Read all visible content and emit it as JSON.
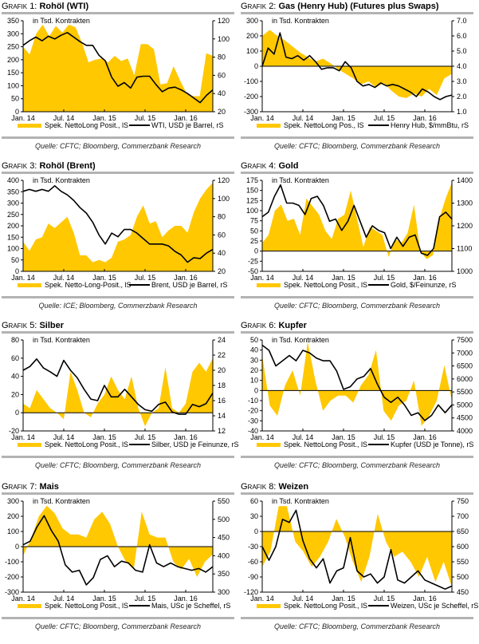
{
  "colors": {
    "fill": "#ffc800",
    "line": "#000000",
    "rule": "#b3b3b3"
  },
  "common": {
    "grafik_label": "Grafik",
    "unit_note": "in Tsd. Kontrakten",
    "x_tick_labels": [
      "Jan. 14",
      "Jul. 14",
      "Jan. 15",
      "Jul. 15",
      "Jan. 16"
    ]
  },
  "chart_data": [
    {
      "id": 1,
      "number": "1:",
      "title": "Rohöl (WTI)",
      "type": "area+line",
      "source": "Quelle: CFTC; Bloomberg, Commerzbank Research",
      "note": "in Tsd. Kontrakten",
      "left_axis": {
        "ticks": [
          "0",
          "50",
          "100",
          "150",
          "200",
          "250",
          "300",
          "350"
        ],
        "range": [
          0,
          350
        ]
      },
      "right_axis": {
        "ticks": [
          "20",
          "40",
          "60",
          "80",
          "100",
          "120"
        ],
        "range": [
          20,
          120
        ]
      },
      "x_ticks": [
        "Jan. 14",
        "Jul. 14",
        "Jan. 15",
        "Jul. 15",
        "Jan. 16"
      ],
      "area_series": {
        "name": "Spek. NettoLong Posit., lS",
        "values": [
          250,
          220,
          300,
          335,
          290,
          330,
          305,
          335,
          325,
          265,
          190,
          200,
          205,
          190,
          215,
          195,
          205,
          140,
          260,
          260,
          240,
          105,
          110,
          175,
          120,
          70,
          60,
          60,
          225,
          215
        ]
      },
      "line_series": {
        "name": "WTI, USD je Barrel, rS",
        "values": [
          93,
          98,
          102,
          98,
          103,
          100,
          104,
          107,
          102,
          97,
          93,
          93,
          82,
          76,
          58,
          48,
          52,
          46,
          58,
          59,
          59,
          50,
          42,
          46,
          47,
          44,
          40,
          35,
          30,
          38,
          44
        ]
      }
    },
    {
      "id": 2,
      "number": "2:",
      "title": "Gas (Henry Hub) (Futures plus Swaps)",
      "type": "area+line",
      "source": "Quelle: CFTC; Bloomberg, Commerzbank Research",
      "note": "in Tsd. Kontrakten",
      "left_axis": {
        "ticks": [
          "-300",
          "-200",
          "-100",
          "0",
          "100",
          "200",
          "300"
        ],
        "range": [
          -300,
          300
        ]
      },
      "right_axis": {
        "ticks": [
          "1.0",
          "2.0",
          "3.0",
          "4.0",
          "5.0",
          "6.0",
          "7.0"
        ],
        "range": [
          1,
          7
        ]
      },
      "x_ticks": [
        "Jan. 14",
        "Jul. 14",
        "Jan. 15",
        "Jul. 15",
        "Jan. 16"
      ],
      "area_series": {
        "name": "Spek. NettoLong Pos., lS",
        "values": [
          200,
          240,
          200,
          170,
          130,
          90,
          60,
          30,
          50,
          20,
          -20,
          -50,
          -80,
          -120,
          -100,
          -140,
          -110,
          -160,
          -200,
          -210,
          -180,
          -200,
          -150,
          -190,
          -80,
          -50
        ]
      },
      "line_series": {
        "name": "Henry Hub, $/mmBtu, rS",
        "values": [
          4.0,
          5.2,
          4.8,
          6.2,
          4.6,
          4.5,
          4.7,
          4.4,
          4.7,
          4.3,
          3.8,
          3.9,
          3.9,
          3.7,
          4.3,
          3.9,
          3.0,
          2.7,
          2.8,
          2.6,
          2.9,
          2.7,
          2.8,
          2.7,
          2.5,
          2.3,
          2.0,
          2.5,
          2.3,
          2.0,
          1.8,
          2.0,
          2.1
        ]
      }
    },
    {
      "id": 3,
      "number": "3:",
      "title": "Rohöl (Brent)",
      "type": "area+line",
      "source": "Quelle: ICE; Bloomberg, Commerzbank Research",
      "note": "in Tsd. Kontrakten",
      "left_axis": {
        "ticks": [
          "0",
          "50",
          "100",
          "150",
          "200",
          "250",
          "300",
          "350",
          "400"
        ],
        "range": [
          0,
          400
        ]
      },
      "right_axis": {
        "ticks": [
          "20",
          "40",
          "60",
          "80",
          "100",
          "120"
        ],
        "range": [
          20,
          120
        ]
      },
      "x_ticks": [
        "Jan. 14",
        "Jul. 14",
        "Jan. 15",
        "Jul. 15",
        "Jan. 16"
      ],
      "area_series": {
        "name": "Spek. Netto-Long-Posit., lS",
        "values": [
          130,
          90,
          140,
          150,
          210,
          190,
          215,
          240,
          170,
          70,
          70,
          40,
          50,
          40,
          60,
          130,
          140,
          160,
          240,
          290,
          210,
          220,
          150,
          180,
          200,
          200,
          170,
          260,
          320,
          360,
          390
        ]
      },
      "line_series": {
        "name": "Brent, USD je Barrel, rS",
        "values": [
          108,
          110,
          108,
          110,
          108,
          114,
          108,
          104,
          98,
          90,
          84,
          74,
          60,
          50,
          62,
          58,
          66,
          66,
          62,
          56,
          50,
          50,
          50,
          48,
          42,
          38,
          30,
          35,
          34,
          40,
          44
        ]
      }
    },
    {
      "id": 4,
      "number": "4:",
      "title": "Gold",
      "type": "area+line",
      "source": "Quelle: CFTC; Bloomberg, Commerzbank Research",
      "note": "in Tsd. Kontrakten",
      "left_axis": {
        "ticks": [
          "-50",
          "-25",
          "0",
          "25",
          "50",
          "75",
          "100",
          "125",
          "150",
          "175"
        ],
        "range": [
          -50,
          175
        ]
      },
      "right_axis": {
        "ticks": [
          "1000",
          "1100",
          "1200",
          "1300",
          "1400"
        ],
        "range": [
          1000,
          1400
        ]
      },
      "x_ticks": [
        "Jan. 14",
        "Jul. 14",
        "Jan. 15",
        "Jul. 15",
        "Jan. 16"
      ],
      "area_series": {
        "name": "Spek. NettoLong Posit., lS",
        "values": [
          20,
          40,
          100,
          115,
          75,
          80,
          40,
          130,
          110,
          90,
          50,
          30,
          80,
          90,
          150,
          80,
          10,
          60,
          50,
          40,
          -15,
          30,
          20,
          45,
          115,
          0,
          -20,
          -10,
          80,
          130,
          170
        ]
      },
      "line_series": {
        "name": "Gold, $/Feinunze, rS",
        "values": [
          1240,
          1260,
          1330,
          1380,
          1300,
          1300,
          1290,
          1250,
          1320,
          1330,
          1290,
          1220,
          1230,
          1180,
          1220,
          1290,
          1220,
          1150,
          1200,
          1180,
          1170,
          1100,
          1150,
          1110,
          1150,
          1160,
          1080,
          1070,
          1100,
          1240,
          1260,
          1230
        ]
      }
    },
    {
      "id": 5,
      "number": "5:",
      "title": "Silber",
      "type": "area+line",
      "source": "Quelle: CFTC; Bloomberg, Commerzbank Research",
      "note": "in Tsd. Kontrakten",
      "left_axis": {
        "ticks": [
          "-20",
          "0",
          "20",
          "40",
          "60",
          "80"
        ],
        "range": [
          -20,
          80
        ]
      },
      "right_axis": {
        "ticks": [
          "12",
          "14",
          "16",
          "18",
          "20",
          "22",
          "24"
        ],
        "range": [
          12,
          24
        ]
      },
      "x_ticks": [
        "Jan. 14",
        "Jul. 14",
        "Jan. 15",
        "Jul. 15",
        "Jan. 16"
      ],
      "area_series": {
        "name": "Spek. NettoLong Posit., lS",
        "values": [
          10,
          5,
          25,
          15,
          5,
          0,
          -7,
          45,
          25,
          0,
          -5,
          10,
          20,
          40,
          25,
          15,
          40,
          5,
          -15,
          0,
          5,
          50,
          5,
          0,
          10,
          45,
          55,
          45,
          60
        ]
      },
      "line_series": {
        "name": "Silber, USD je Feinunze, rS",
        "values": [
          20,
          20.5,
          21.5,
          20.3,
          19.8,
          19.2,
          21.3,
          20,
          19,
          17.5,
          16.2,
          16,
          18,
          16.5,
          16.5,
          17.5,
          16.5,
          15.5,
          14.8,
          14.6,
          15.5,
          15.8,
          14.5,
          14.2,
          14.2,
          15.5,
          15.2,
          15.6,
          17
        ]
      }
    },
    {
      "id": 6,
      "number": "6:",
      "title": "Kupfer",
      "type": "area+line",
      "source": "Quelle: CFTC; Bloomberg, Commerzbank Research",
      "note": "in Tsd. Kontrakten",
      "left_axis": {
        "ticks": [
          "-40",
          "-30",
          "-20",
          "-10",
          "0",
          "10",
          "20",
          "30",
          "40",
          "50"
        ],
        "range": [
          -40,
          50
        ]
      },
      "right_axis": {
        "ticks": [
          "4000",
          "4500",
          "5000",
          "5500",
          "6000",
          "6500",
          "7000",
          "7500"
        ],
        "range": [
          4000,
          7500
        ]
      },
      "x_ticks": [
        "Jan. 14",
        "Jul. 14",
        "Jan. 15",
        "Jul. 15",
        "Jan. 16"
      ],
      "area_series": {
        "name": "Spek. NettoLong Posit., lS",
        "values": [
          35,
          -15,
          -25,
          5,
          20,
          -5,
          48,
          10,
          -20,
          -10,
          -5,
          -5,
          -12,
          5,
          15,
          40,
          -20,
          -30,
          -15,
          -10,
          10,
          -35,
          -25,
          -10,
          25,
          -10
        ]
      },
      "line_series": {
        "name": "Kupfer (USD je Tonne), rS",
        "values": [
          7300,
          7100,
          6500,
          6700,
          6900,
          6700,
          7100,
          7000,
          6800,
          6700,
          6700,
          6300,
          5600,
          5700,
          6000,
          6100,
          6400,
          5800,
          5300,
          5100,
          5300,
          5000,
          4600,
          4700,
          4400,
          4600,
          5000,
          4700,
          5000
        ]
      }
    },
    {
      "id": 7,
      "number": "7:",
      "title": "Mais",
      "type": "area+line",
      "source": "Quelle: CFTC; Bloomberg, Commerzbank Research",
      "note": "in Tsd. Kontrakten",
      "left_axis": {
        "ticks": [
          "-300",
          "-200",
          "-100",
          "0",
          "100",
          "200",
          "300"
        ],
        "range": [
          -300,
          300
        ]
      },
      "right_axis": {
        "ticks": [
          "300",
          "350",
          "400",
          "450",
          "500",
          "550"
        ],
        "range": [
          300,
          550
        ]
      },
      "x_ticks": [
        "Jan. 14",
        "Jul. 14",
        "Jan. 15",
        "Jul. 15",
        "Jan. 16"
      ],
      "area_series": {
        "name": "Spek. NettoLong Posit., lS",
        "values": [
          -60,
          50,
          200,
          270,
          220,
          120,
          80,
          80,
          60,
          180,
          230,
          150,
          0,
          -100,
          -150,
          230,
          80,
          60,
          60,
          -100,
          -150,
          -80,
          -200,
          -100,
          -50
        ]
      },
      "line_series": {
        "name": "Mais, USc je Scheffel, rS",
        "values": [
          430,
          440,
          480,
          510,
          470,
          440,
          375,
          355,
          360,
          320,
          340,
          390,
          400,
          370,
          385,
          380,
          360,
          355,
          430,
          380,
          370,
          380,
          370,
          365,
          360,
          365,
          355,
          370
        ]
      }
    },
    {
      "id": 8,
      "number": "8:",
      "title": "Weizen",
      "type": "area+line",
      "source": "Quelle: CFTC; Bloomberg, Commerzbank Research",
      "note": "in Tsd. Kontrakten",
      "left_axis": {
        "ticks": [
          "-120",
          "-90",
          "-60",
          "-30",
          "0",
          "30",
          "60"
        ],
        "range": [
          -120,
          60
        ]
      },
      "right_axis": {
        "ticks": [
          "450",
          "500",
          "550",
          "600",
          "650",
          "700",
          "750"
        ],
        "range": [
          450,
          750
        ]
      },
      "x_ticks": [
        "Jan. 14",
        "Jul. 14",
        "Jan. 15",
        "Jul. 15",
        "Jan. 16"
      ],
      "area_series": {
        "name": "Spek. NettoLong Posit., lS",
        "values": [
          -70,
          -40,
          50,
          50,
          -20,
          -40,
          -70,
          -50,
          -20,
          25,
          -10,
          -60,
          -100,
          -50,
          35,
          -20,
          -50,
          -40,
          -60,
          -90,
          -50,
          -100,
          -60,
          -110
        ]
      },
      "line_series": {
        "name": "Weizen, USc je Scheffel, rS",
        "values": [
          600,
          555,
          600,
          690,
          680,
          720,
          620,
          560,
          530,
          560,
          480,
          520,
          530,
          630,
          520,
          500,
          510,
          480,
          500,
          590,
          490,
          480,
          500,
          520,
          490,
          480,
          470,
          460,
          470
        ]
      }
    }
  ]
}
